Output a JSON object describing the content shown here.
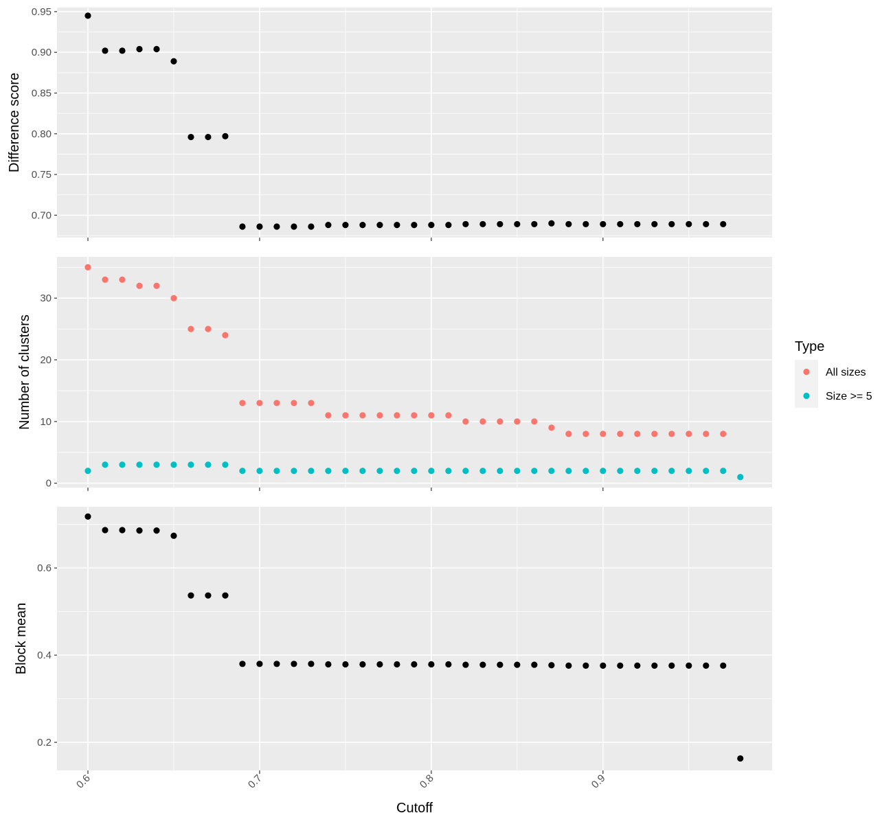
{
  "chart_data": [
    {
      "type": "scatter",
      "ylabel": "Difference score",
      "xlabel": "",
      "xlim": [
        0.582,
        0.9985
      ],
      "ylim": [
        0.6725,
        0.955
      ],
      "x_ticks": [
        0.6,
        0.7,
        0.8,
        0.9
      ],
      "x_tick_labels": [
        "0.6",
        "0.7",
        "0.8",
        "0.9"
      ],
      "y_ticks": [
        0.7,
        0.75,
        0.8,
        0.85,
        0.9,
        0.95
      ],
      "y_tick_labels": [
        "0.70",
        "0.75",
        "0.80",
        "0.85",
        "0.90",
        "0.95"
      ],
      "grid": true,
      "series": [
        {
          "color": "#000000",
          "x": [
            0.6,
            0.61,
            0.62,
            0.63,
            0.64,
            0.65,
            0.66,
            0.67,
            0.68,
            0.69,
            0.7,
            0.71,
            0.72,
            0.73,
            0.74,
            0.75,
            0.76,
            0.77,
            0.78,
            0.79,
            0.8,
            0.81,
            0.82,
            0.83,
            0.84,
            0.85,
            0.86,
            0.87,
            0.88,
            0.89,
            0.9,
            0.91,
            0.92,
            0.93,
            0.94,
            0.95,
            0.96,
            0.97
          ],
          "y": [
            0.945,
            0.902,
            0.902,
            0.904,
            0.904,
            0.889,
            0.796,
            0.796,
            0.797,
            0.686,
            0.686,
            0.686,
            0.686,
            0.686,
            0.688,
            0.688,
            0.688,
            0.688,
            0.688,
            0.688,
            0.688,
            0.688,
            0.689,
            0.689,
            0.689,
            0.689,
            0.689,
            0.69,
            0.689,
            0.689,
            0.689,
            0.689,
            0.689,
            0.689,
            0.689,
            0.689,
            0.689,
            0.689
          ]
        }
      ]
    },
    {
      "type": "scatter",
      "ylabel": "Number of clusters",
      "xlabel": "",
      "xlim": [
        0.582,
        0.9985
      ],
      "ylim": [
        -0.7,
        36.7
      ],
      "x_ticks": [
        0.6,
        0.7,
        0.8,
        0.9
      ],
      "x_tick_labels": [
        "0.6",
        "0.7",
        "0.8",
        "0.9"
      ],
      "y_ticks": [
        0,
        10,
        20,
        30
      ],
      "y_tick_labels": [
        "0",
        "10",
        "20",
        "30"
      ],
      "grid": true,
      "legend": {
        "title": "Type",
        "placement": "right",
        "entries": [
          {
            "label": "All sizes",
            "color": "#F8766D"
          },
          {
            "label": "Size >= 5",
            "color": "#00BFC4"
          }
        ]
      },
      "series": [
        {
          "name": "All sizes",
          "color": "#F8766D",
          "x": [
            0.6,
            0.61,
            0.62,
            0.63,
            0.64,
            0.65,
            0.66,
            0.67,
            0.68,
            0.69,
            0.7,
            0.71,
            0.72,
            0.73,
            0.74,
            0.75,
            0.76,
            0.77,
            0.78,
            0.79,
            0.8,
            0.81,
            0.82,
            0.83,
            0.84,
            0.85,
            0.86,
            0.87,
            0.88,
            0.89,
            0.9,
            0.91,
            0.92,
            0.93,
            0.94,
            0.95,
            0.96,
            0.97
          ],
          "y": [
            35,
            33,
            33,
            32,
            32,
            30,
            25,
            25,
            24,
            13,
            13,
            13,
            13,
            13,
            11,
            11,
            11,
            11,
            11,
            11,
            11,
            11,
            10,
            10,
            10,
            10,
            10,
            9,
            8,
            8,
            8,
            8,
            8,
            8,
            8,
            8,
            8,
            8
          ]
        },
        {
          "name": "Size >= 5",
          "color": "#00BFC4",
          "x": [
            0.6,
            0.61,
            0.62,
            0.63,
            0.64,
            0.65,
            0.66,
            0.67,
            0.68,
            0.69,
            0.7,
            0.71,
            0.72,
            0.73,
            0.74,
            0.75,
            0.76,
            0.77,
            0.78,
            0.79,
            0.8,
            0.81,
            0.82,
            0.83,
            0.84,
            0.85,
            0.86,
            0.87,
            0.88,
            0.89,
            0.9,
            0.91,
            0.92,
            0.93,
            0.94,
            0.95,
            0.96,
            0.97,
            0.98
          ],
          "y": [
            2,
            3,
            3,
            3,
            3,
            3,
            3,
            3,
            3,
            2,
            2,
            2,
            2,
            2,
            2,
            2,
            2,
            2,
            2,
            2,
            2,
            2,
            2,
            2,
            2,
            2,
            2,
            2,
            2,
            2,
            2,
            2,
            2,
            2,
            2,
            2,
            2,
            2,
            1
          ]
        }
      ]
    },
    {
      "type": "scatter",
      "ylabel": "Block mean",
      "xlabel": "Cutoff",
      "xlim": [
        0.582,
        0.9985
      ],
      "ylim": [
        0.1355,
        0.7405
      ],
      "x_ticks": [
        0.6,
        0.7,
        0.8,
        0.9
      ],
      "x_tick_labels": [
        "0.6",
        "0.7",
        "0.8",
        "0.9"
      ],
      "y_ticks": [
        0.2,
        0.4,
        0.6
      ],
      "y_tick_labels": [
        "0.2",
        "0.4",
        "0.6"
      ],
      "grid": true,
      "series": [
        {
          "color": "#000000",
          "x": [
            0.6,
            0.61,
            0.62,
            0.63,
            0.64,
            0.65,
            0.66,
            0.67,
            0.68,
            0.69,
            0.7,
            0.71,
            0.72,
            0.73,
            0.74,
            0.75,
            0.76,
            0.77,
            0.78,
            0.79,
            0.8,
            0.81,
            0.82,
            0.83,
            0.84,
            0.85,
            0.86,
            0.87,
            0.88,
            0.89,
            0.9,
            0.91,
            0.92,
            0.93,
            0.94,
            0.95,
            0.96,
            0.97,
            0.98
          ],
          "y": [
            0.718,
            0.687,
            0.687,
            0.686,
            0.686,
            0.674,
            0.537,
            0.537,
            0.537,
            0.38,
            0.38,
            0.38,
            0.38,
            0.38,
            0.379,
            0.379,
            0.379,
            0.379,
            0.379,
            0.379,
            0.379,
            0.379,
            0.378,
            0.378,
            0.378,
            0.378,
            0.378,
            0.377,
            0.376,
            0.376,
            0.376,
            0.376,
            0.376,
            0.376,
            0.376,
            0.376,
            0.376,
            0.376,
            0.163
          ]
        }
      ]
    }
  ]
}
